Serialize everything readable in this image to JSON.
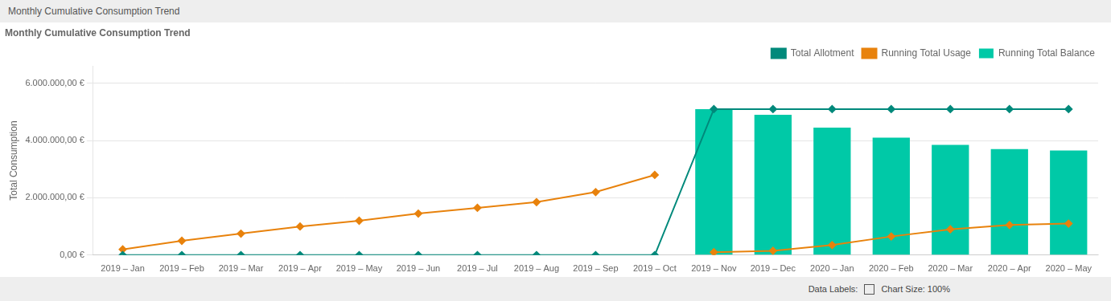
{
  "chart_data": {
    "type": "bar",
    "title": "Monthly Cumulative Consumption Trend",
    "y_label": "Total Consumption",
    "annotations": [
      "Data Labels:",
      "Chart Size: 100%"
    ],
    "categories": [
      "2019 – Jan",
      "2019 – Feb",
      "2019 – Mar",
      "2019 – Apr",
      "2019 – May",
      "2019 – Jun",
      "2019 – Jul",
      "2019 – Aug",
      "2019 – Sep",
      "2019 – Oct",
      "2019 – Nov",
      "2019 – Dec",
      "2020 – Jan",
      "2020 – Feb",
      "2020 – Mar",
      "2020 – Apr",
      "2020 – May"
    ],
    "series": [
      {
        "name": "Total Allotment",
        "type": "line",
        "color": "#00897B",
        "marker": "diamond",
        "values": [
          0,
          0,
          0,
          0,
          0,
          0,
          0,
          0,
          0,
          0,
          5100000,
          5100000,
          5100000,
          5100000,
          5100000,
          5100000,
          5100000
        ]
      },
      {
        "name": "Running Total Usage",
        "type": "line",
        "color": "#E8820C",
        "marker": "diamond",
        "values": [
          200000,
          500000,
          750000,
          1000000,
          1200000,
          1450000,
          1650000,
          1850000,
          2200000,
          2800000,
          null,
          null,
          null,
          null,
          null,
          null,
          null
        ]
      },
      {
        "name": "Running Total Usage",
        "type": "line",
        "color": "#E8820C",
        "marker": "diamond",
        "values": [
          null,
          null,
          null,
          null,
          null,
          null,
          null,
          null,
          null,
          null,
          100000,
          150000,
          350000,
          650000,
          900000,
          1050000,
          1100000
        ]
      },
      {
        "name": "Running Total Balance",
        "type": "bar",
        "color": "#00C9A7",
        "values": [
          null,
          null,
          null,
          null,
          null,
          null,
          null,
          null,
          null,
          null,
          5100000,
          4900000,
          4450000,
          4100000,
          3850000,
          3700000,
          3650000
        ]
      }
    ],
    "ylim": [
      0,
      6600000
    ],
    "yticks": [
      {
        "value": 0,
        "label": "0,00 €"
      },
      {
        "value": 2000000,
        "label": "2.000.000,00 €"
      },
      {
        "value": 4000000,
        "label": "4.000.000,00 €"
      },
      {
        "value": 6000000,
        "label": "6.000.000,00 €"
      }
    ],
    "grid": true,
    "legend": "upper right"
  }
}
